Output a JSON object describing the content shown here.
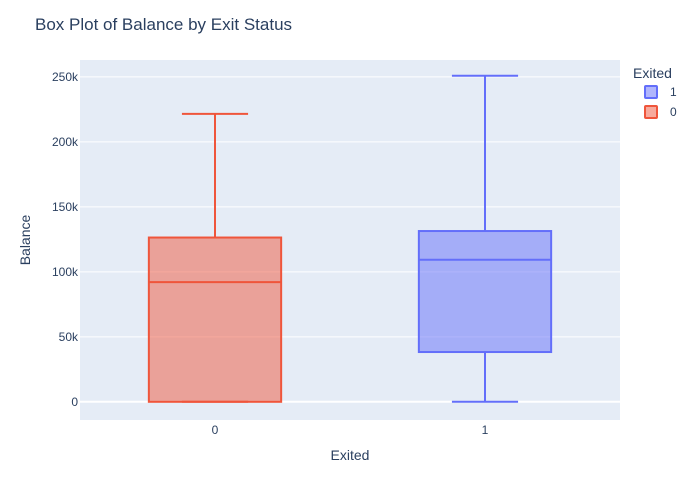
{
  "chart_data": {
    "type": "box",
    "title": "Box Plot of Balance by Exit Status",
    "xlabel": "Exited",
    "ylabel": "Balance",
    "ylim": [
      -14000,
      263000
    ],
    "grid": true,
    "legend": {
      "title": "Exited",
      "placement": "top-right"
    },
    "y_ticks": [
      {
        "value": 0,
        "label": "0"
      },
      {
        "value": 50000,
        "label": "50k"
      },
      {
        "value": 100000,
        "label": "100k"
      },
      {
        "value": 150000,
        "label": "150k"
      },
      {
        "value": 200000,
        "label": "200k"
      },
      {
        "value": 250000,
        "label": "250k"
      }
    ],
    "categories": [
      "0",
      "1"
    ],
    "series": [
      {
        "name": "1",
        "category": "1",
        "color": "#636efa",
        "min": 0,
        "q1": 38300,
        "median": 109300,
        "q3": 131400,
        "max": 250900
      },
      {
        "name": "0",
        "category": "0",
        "color": "#ef553b",
        "min": 0,
        "q1": 0,
        "median": 92100,
        "q3": 126400,
        "max": 221500
      }
    ]
  },
  "colors": {
    "plot_bg": "#e5ecf6",
    "grid": "#ffffff",
    "text": "#2a3f5f"
  }
}
